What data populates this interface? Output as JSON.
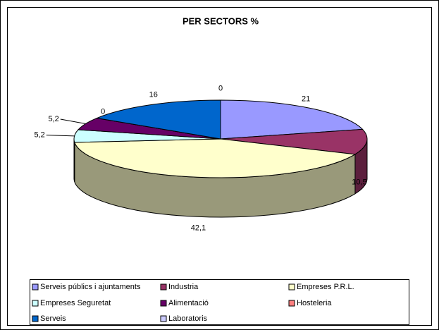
{
  "chart_data": {
    "type": "pie3d",
    "title": "PER SECTORS %",
    "categories": [
      "Serveis públics i ajuntaments",
      "Industria",
      "Empreses P.R.L.",
      "Empreses Seguretat",
      "Alimentació",
      "Hosteleria",
      "Serveis",
      "Laboratoris"
    ],
    "values": [
      21,
      10.5,
      42.1,
      5.2,
      5.2,
      0,
      16,
      0
    ],
    "value_labels": [
      "21",
      "10,5",
      "42,1",
      "5,2",
      "5,2",
      "0",
      "16",
      "0"
    ],
    "colors": [
      "#9999ff",
      "#993366",
      "#ffffcc",
      "#ccffff",
      "#660066",
      "#ff8080",
      "#0066cc",
      "#ccccff"
    ]
  }
}
